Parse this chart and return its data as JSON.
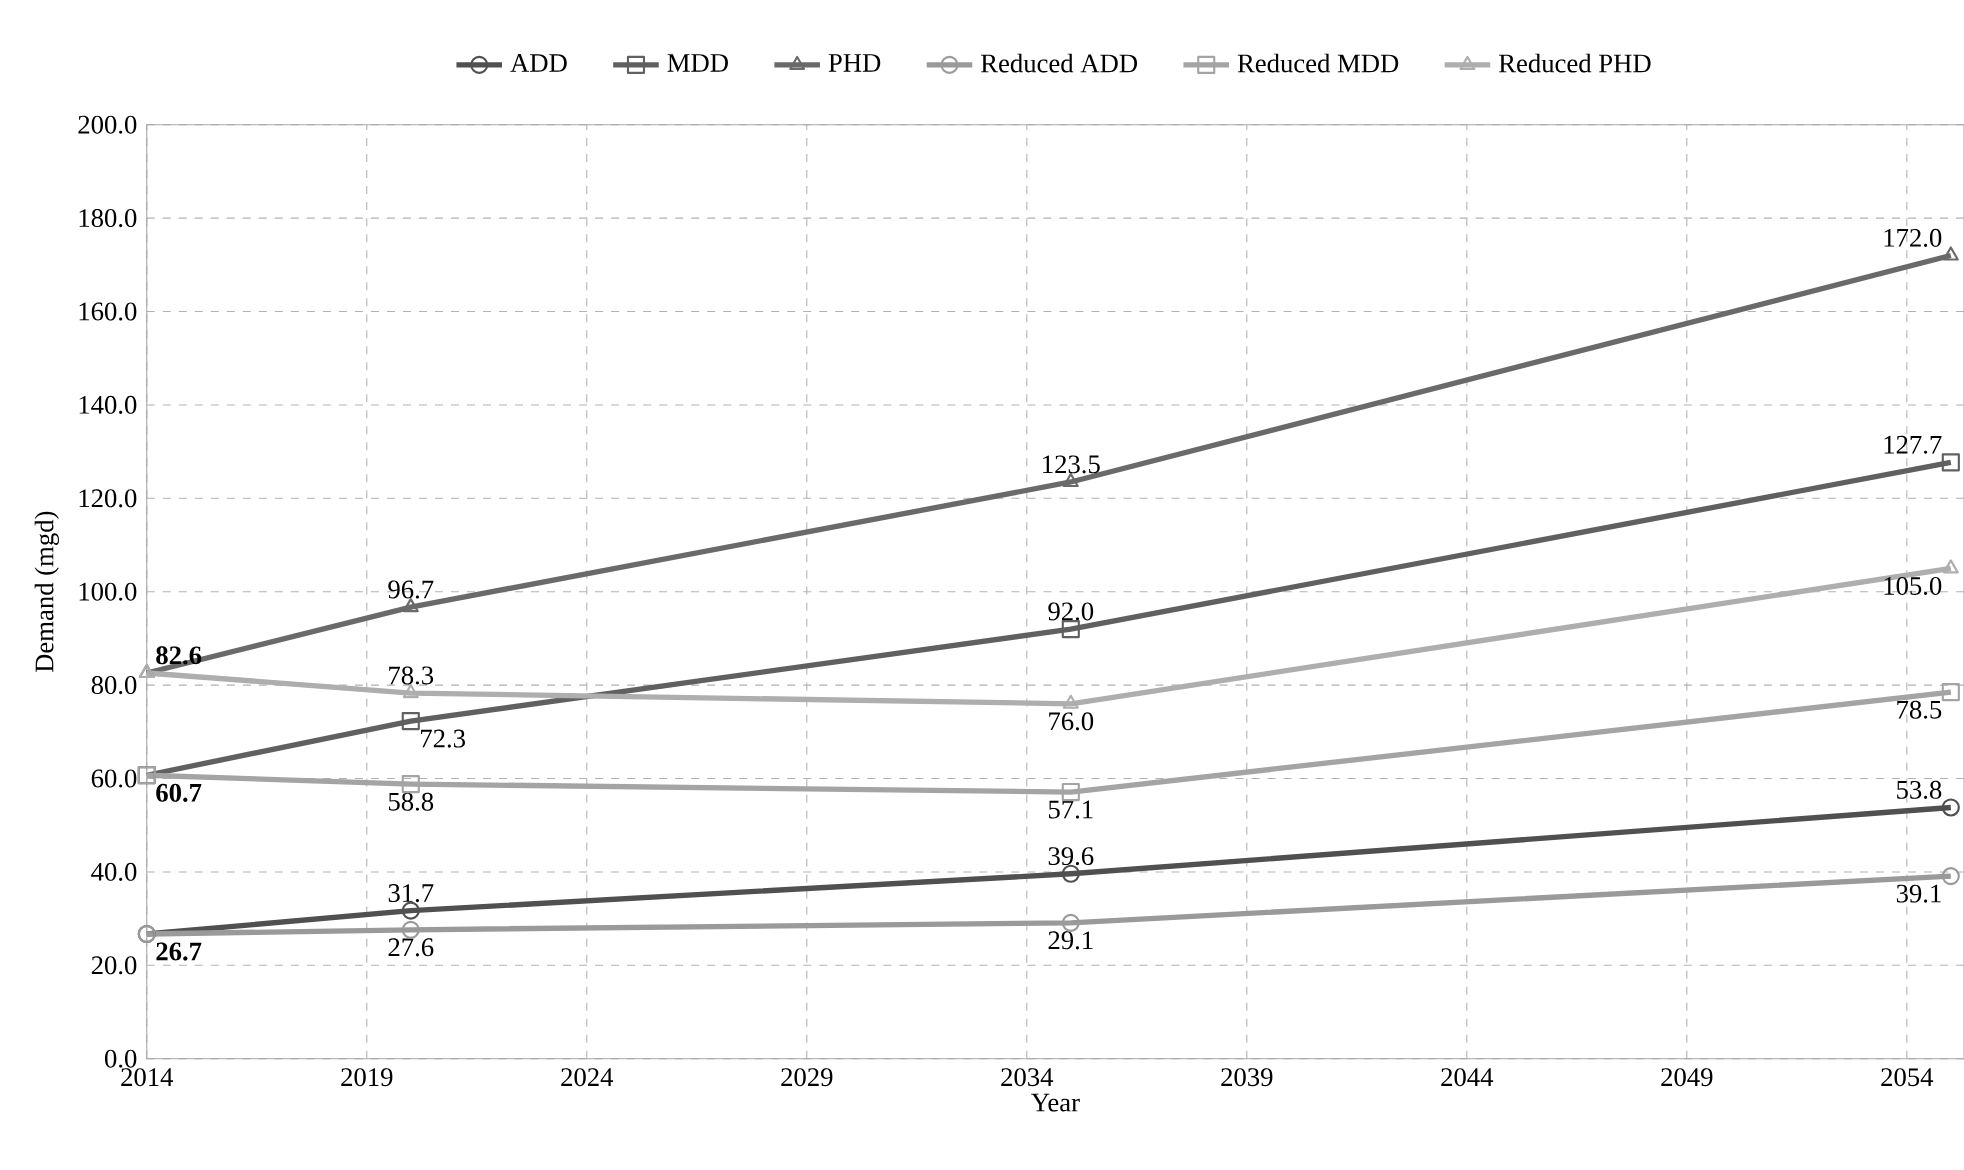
{
  "chart_data": {
    "type": "line",
    "xlabel": "Year",
    "ylabel": "Demand (mgd)",
    "x": [
      2014,
      2020,
      2035,
      2055
    ],
    "xlim": [
      2014,
      2055.3
    ],
    "xticks": [
      2014,
      2019,
      2024,
      2029,
      2034,
      2039,
      2044,
      2049,
      2054
    ],
    "ylim": [
      0,
      200
    ],
    "yticks": [
      {
        "value": 0,
        "label": "0.0"
      },
      {
        "value": 20,
        "label": "20.0"
      },
      {
        "value": 40,
        "label": "40.0"
      },
      {
        "value": 60,
        "label": "60.0"
      },
      {
        "value": 80,
        "label": "80.0"
      },
      {
        "value": 100,
        "label": "100.0"
      },
      {
        "value": 120,
        "label": "120.0"
      },
      {
        "value": 140,
        "label": "140.0"
      },
      {
        "value": 160,
        "label": "160.0"
      },
      {
        "value": 180,
        "label": "180.0"
      },
      {
        "value": 200,
        "label": "200.0"
      }
    ],
    "grid": true,
    "legend": "top",
    "series": [
      {
        "name": "ADD",
        "color": "#505050",
        "marker": "circle",
        "values": [
          26.7,
          31.7,
          39.6,
          53.8
        ],
        "value_labels": [
          "26.7",
          "31.7",
          "39.6",
          "53.8"
        ]
      },
      {
        "name": "MDD",
        "color": "#606060",
        "marker": "square",
        "values": [
          60.7,
          72.3,
          92.0,
          127.7
        ],
        "value_labels": [
          "60.7",
          "72.3",
          "92.0",
          "127.7"
        ]
      },
      {
        "name": "PHD",
        "color": "#6a6a6a",
        "marker": "triangle",
        "values": [
          82.6,
          96.7,
          123.5,
          172.0
        ],
        "value_labels": [
          "82.6",
          "96.7",
          "123.5",
          "172.0"
        ]
      },
      {
        "name": "Reduced ADD",
        "color": "#9a9a9a",
        "marker": "circle",
        "values": [
          26.7,
          27.6,
          29.1,
          39.1
        ],
        "value_labels": [
          null,
          "27.6",
          "29.1",
          "39.1"
        ]
      },
      {
        "name": "Reduced MDD",
        "color": "#a4a4a4",
        "marker": "square",
        "values": [
          60.7,
          58.8,
          57.1,
          78.5
        ],
        "value_labels": [
          null,
          "58.8",
          "57.1",
          "78.5"
        ]
      },
      {
        "name": "Reduced PHD",
        "color": "#aeaeae",
        "marker": "triangle",
        "values": [
          82.6,
          78.3,
          76.0,
          105.0
        ],
        "value_labels": [
          null,
          "78.3",
          "76.0",
          "105.0"
        ]
      }
    ]
  }
}
